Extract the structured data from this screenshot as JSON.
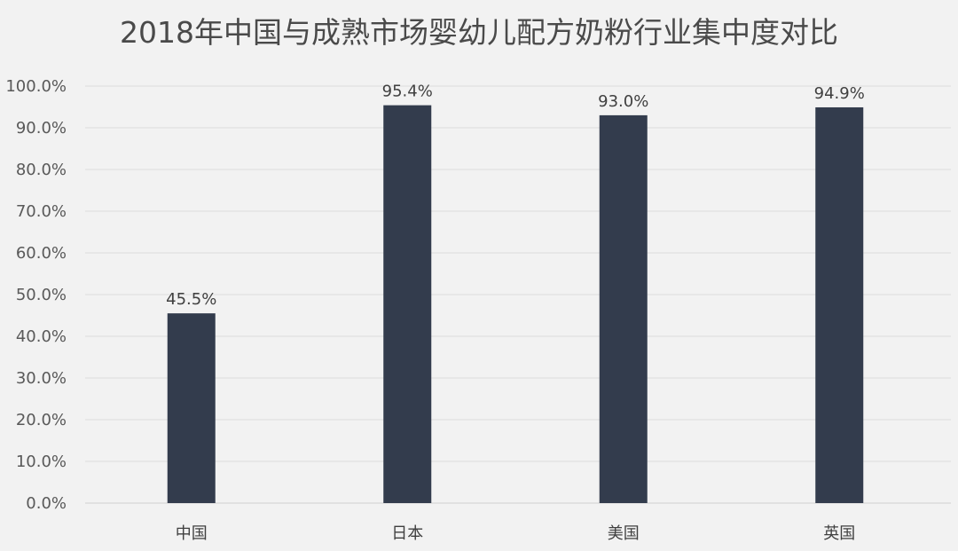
{
  "chart_data": {
    "type": "bar",
    "title": "2018年中国与成熟市场婴幼儿配方奶粉行业集中度对比",
    "categories": [
      "中国",
      "日本",
      "美国",
      "英国"
    ],
    "values": [
      45.5,
      95.4,
      93.0,
      94.9
    ],
    "data_labels": [
      "45.5%",
      "95.4%",
      "93.0%",
      "94.9%"
    ],
    "xlabel": "",
    "ylabel": "",
    "ylim": [
      0,
      100
    ],
    "yticks": [
      "0.0%",
      "10.0%",
      "20.0%",
      "30.0%",
      "40.0%",
      "50.0%",
      "60.0%",
      "70.0%",
      "80.0%",
      "90.0%",
      "100.0%"
    ],
    "grid": true,
    "legend": "none",
    "bar_color": "#333c4d",
    "background": "#f2f2f2"
  }
}
